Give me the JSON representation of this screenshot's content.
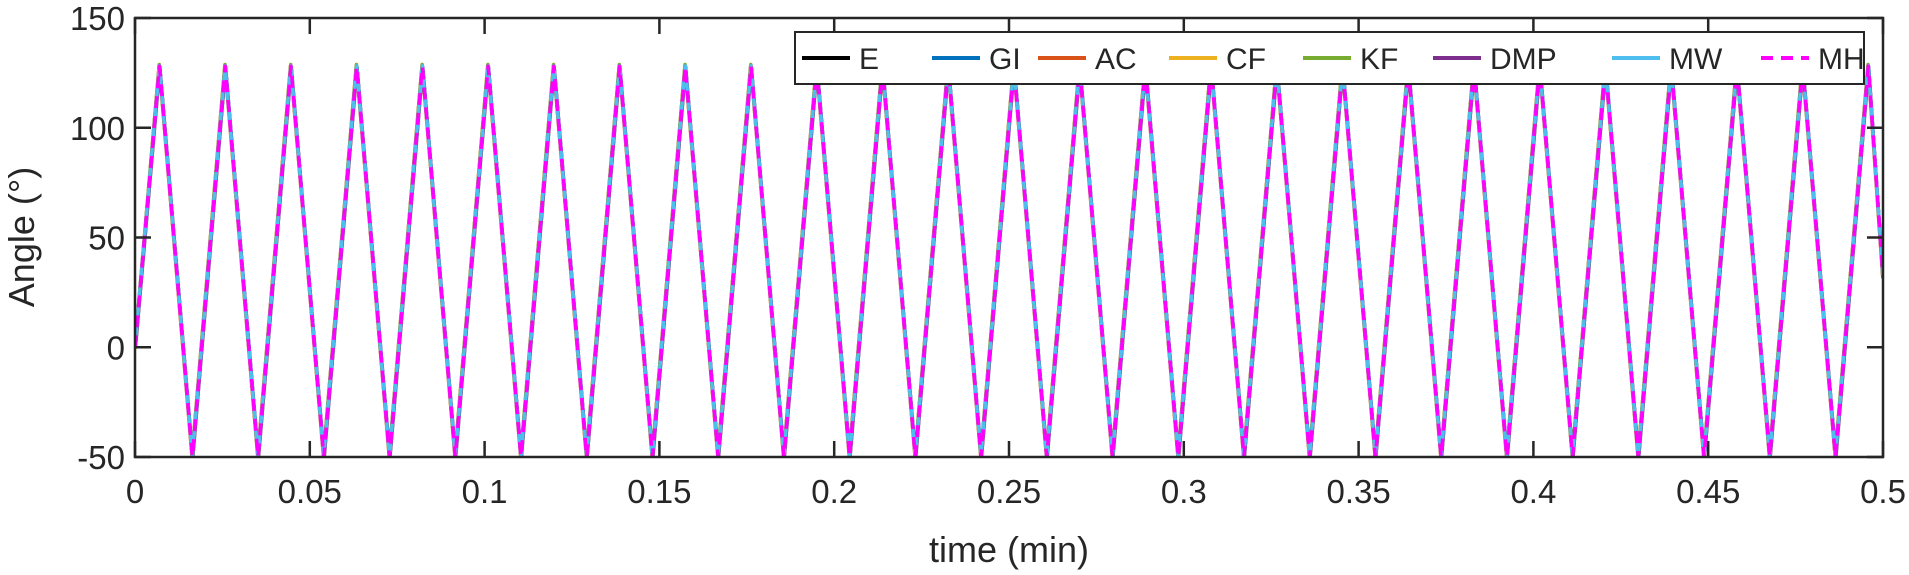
{
  "chart_data": {
    "type": "line",
    "title": "",
    "xlabel": "time (min)",
    "ylabel": "Angle (°)",
    "xlim": [
      0,
      0.5
    ],
    "ylim": [
      -50,
      150
    ],
    "xticks": [
      0,
      0.05,
      0.1,
      0.15,
      0.2,
      0.25,
      0.3,
      0.35,
      0.4,
      0.45,
      0.5
    ],
    "xtick_labels": [
      "0",
      "0.05",
      "0.1",
      "0.15",
      "0.2",
      "0.25",
      "0.3",
      "0.35",
      "0.4",
      "0.45",
      "0.5"
    ],
    "yticks": [
      -50,
      0,
      50,
      100,
      150
    ],
    "ytick_labels": [
      "-50",
      "0",
      "50",
      "100",
      "150"
    ],
    "grid": false,
    "legend_position": "top-right",
    "signal": {
      "waveform": "triangle",
      "start_value": 0,
      "peak": 128,
      "trough": -50,
      "period_min": 0.0188,
      "first_peak_min": 0.007,
      "end_value": 32
    },
    "series": [
      {
        "name": "E",
        "color": "#000000",
        "style": "solid"
      },
      {
        "name": "GI",
        "color": "#0072BD",
        "style": "solid"
      },
      {
        "name": "AC",
        "color": "#D95319",
        "style": "solid"
      },
      {
        "name": "CF",
        "color": "#EDB120",
        "style": "solid"
      },
      {
        "name": "KF",
        "color": "#77AC30",
        "style": "solid"
      },
      {
        "name": "DMP",
        "color": "#7E2F8E",
        "style": "solid"
      },
      {
        "name": "MW",
        "color": "#4DBEEE",
        "style": "solid"
      },
      {
        "name": "MH",
        "color": "#FF00FF",
        "style": "dashed"
      }
    ]
  }
}
